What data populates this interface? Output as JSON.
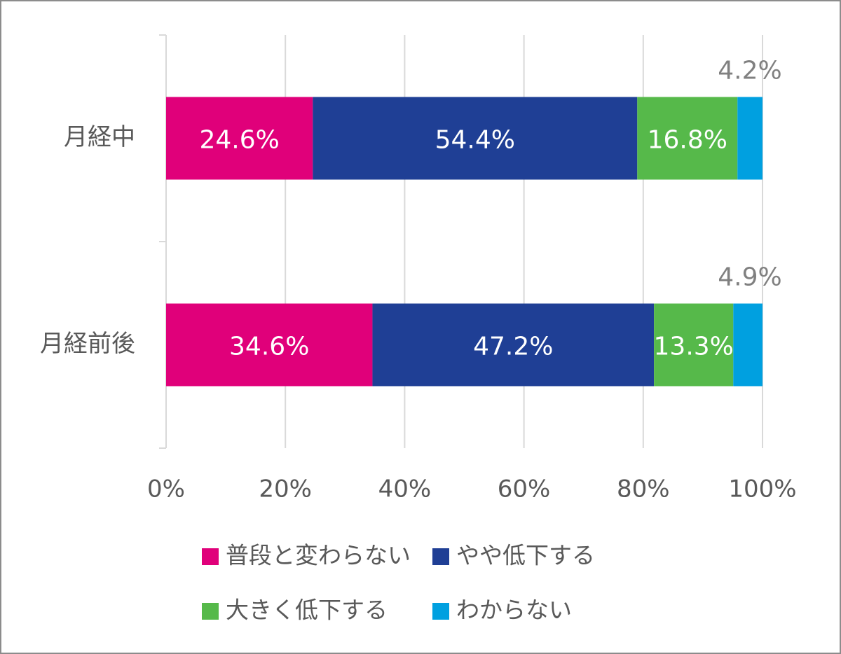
{
  "chart_data": {
    "type": "stacked-bar-horizontal",
    "categories": [
      "月経中",
      "月経前後"
    ],
    "series": [
      {
        "name": "普段と変わらない",
        "color": "#e0007a",
        "values": [
          24.6,
          34.6
        ],
        "value_labels": [
          "24.6%",
          "34.6%"
        ]
      },
      {
        "name": "やや低下する",
        "color": "#1f3f95",
        "values": [
          54.4,
          47.2
        ],
        "value_labels": [
          "54.4%",
          "47.2%"
        ]
      },
      {
        "name": "大きく低下する",
        "color": "#56b94a",
        "values": [
          16.8,
          13.3
        ],
        "value_labels": [
          "16.8%",
          "13.3%"
        ]
      },
      {
        "name": "わからない",
        "color": "#00a0e0",
        "values": [
          4.2,
          4.9
        ],
        "value_labels": [
          "4.2%",
          "4.9%"
        ]
      }
    ],
    "xlim": [
      0,
      100
    ],
    "xticks": [
      {
        "value": 0,
        "label": "0%"
      },
      {
        "value": 20,
        "label": "20%"
      },
      {
        "value": 40,
        "label": "40%"
      },
      {
        "value": 60,
        "label": "60%"
      },
      {
        "value": 80,
        "label": "80%"
      },
      {
        "value": 100,
        "label": "100%"
      }
    ],
    "grid": true
  }
}
